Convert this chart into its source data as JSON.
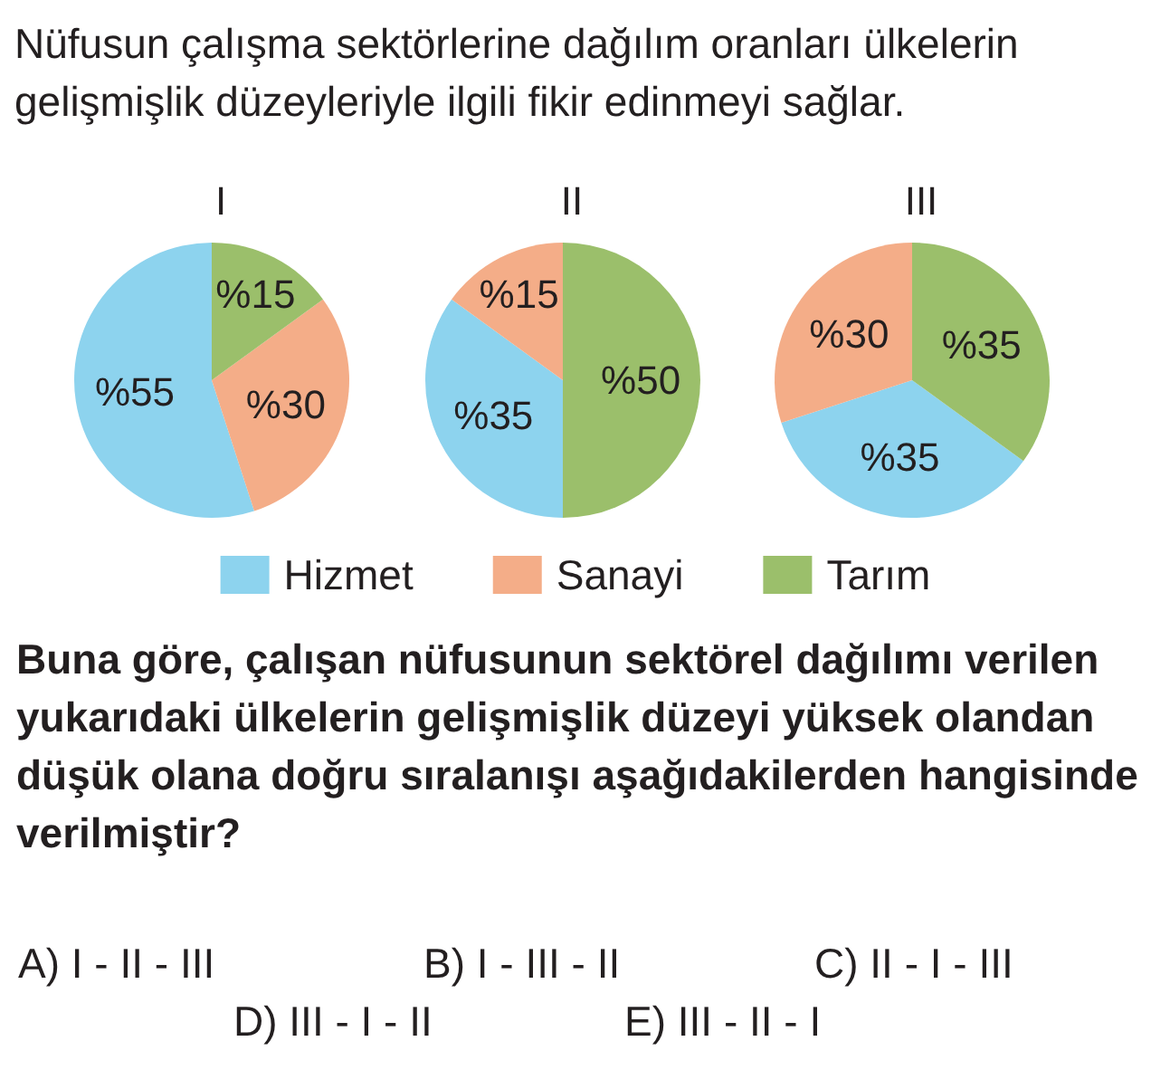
{
  "chart_data": {
    "type": "pie",
    "title": "Nüfusun çalışma sektörlerine dağılım oranları ülkelerin gelişmişlik düzeyleriyle ilgili fikir edinmeyi sağlar.",
    "categories": [
      "Hizmet",
      "Sanayi",
      "Tarım"
    ],
    "colors": [
      "#8dd3ee",
      "#f4ad88",
      "#9bbf6b"
    ],
    "series": [
      {
        "name": "I",
        "values": [
          55,
          30,
          15
        ],
        "value_labels": [
          "%55",
          "%30",
          "%15"
        ]
      },
      {
        "name": "II",
        "values": [
          35,
          15,
          50
        ],
        "value_labels": [
          "%35",
          "%15",
          "%50"
        ]
      },
      {
        "name": "III",
        "values": [
          35,
          30,
          35
        ],
        "value_labels": [
          "%35",
          "%30",
          "%35"
        ]
      }
    ],
    "legend": "bottom",
    "annotations": [
      "Buna göre, çalışan nüfusunun sektörel dağılımı verilen yukarıdaki ülkelerin gelişmişlik düzeyi yüksek olandan düşük olana doğru sıralanışı aşağıdakilerden hangisinde verilmiştir?",
      "A) I - II - III",
      "B) I - III - II",
      "C) II - I - III",
      "D) III - I - II",
      "E) III - II - I"
    ]
  }
}
